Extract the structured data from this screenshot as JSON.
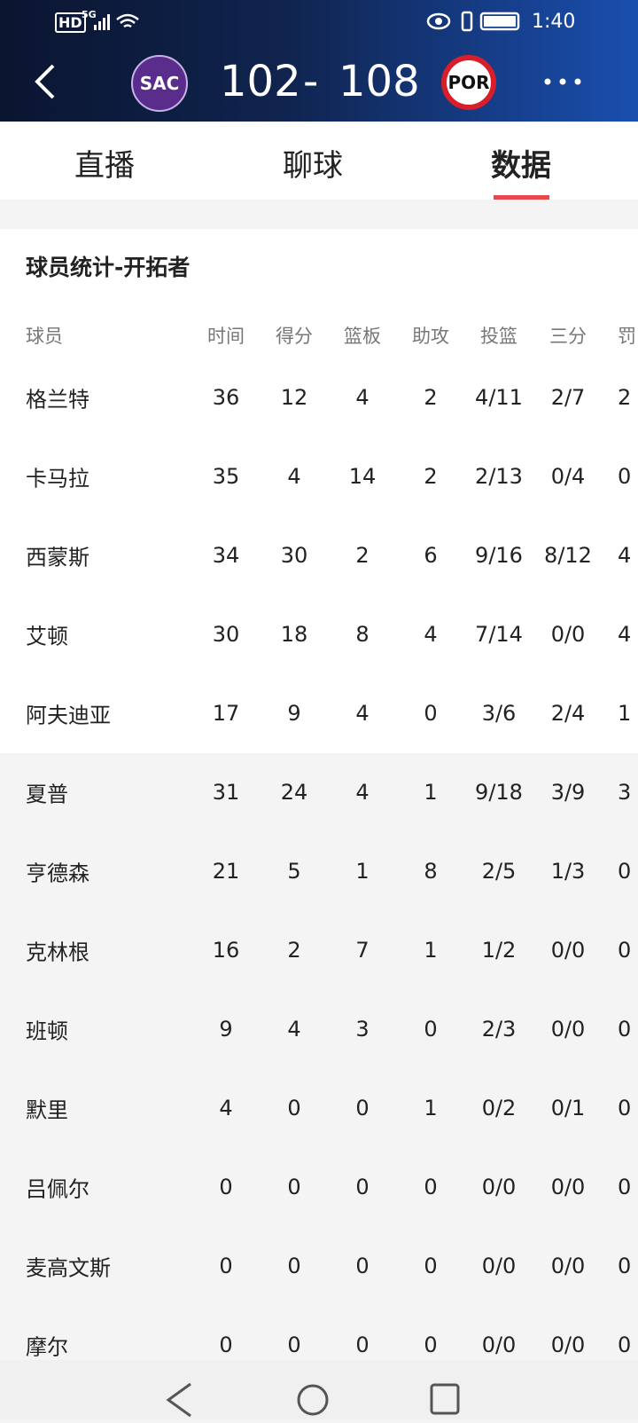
{
  "status_bar": {
    "hd": "HD",
    "network": "5G",
    "time": "1:40"
  },
  "header": {
    "home": {
      "abbr": "SAC",
      "score": "102"
    },
    "separator": "-",
    "away": {
      "abbr": "POR",
      "score": "108"
    }
  },
  "tabs": [
    "直播",
    "聊球",
    "数据"
  ],
  "active_tab": 2,
  "table": {
    "title": "球员统计-开拓者",
    "columns": [
      "球员",
      "时间",
      "得分",
      "篮板",
      "助攻",
      "投篮",
      "三分",
      "罚"
    ],
    "rows": [
      [
        "格兰特",
        "36",
        "12",
        "4",
        "2",
        "4/11",
        "2/7",
        "2"
      ],
      [
        "卡马拉",
        "35",
        "4",
        "14",
        "2",
        "2/13",
        "0/4",
        "0"
      ],
      [
        "西蒙斯",
        "34",
        "30",
        "2",
        "6",
        "9/16",
        "8/12",
        "4"
      ],
      [
        "艾顿",
        "30",
        "18",
        "8",
        "4",
        "7/14",
        "0/0",
        "4"
      ],
      [
        "阿夫迪亚",
        "17",
        "9",
        "4",
        "0",
        "3/6",
        "2/4",
        "1"
      ],
      [
        "夏普",
        "31",
        "24",
        "4",
        "1",
        "9/18",
        "3/9",
        "3"
      ],
      [
        "亨德森",
        "21",
        "5",
        "1",
        "8",
        "2/5",
        "1/3",
        "0"
      ],
      [
        "克林根",
        "16",
        "2",
        "7",
        "1",
        "1/2",
        "0/0",
        "0"
      ],
      [
        "班顿",
        "9",
        "4",
        "3",
        "0",
        "2/3",
        "0/0",
        "0"
      ],
      [
        "默里",
        "4",
        "0",
        "0",
        "1",
        "0/2",
        "0/1",
        "0"
      ],
      [
        "吕佩尔",
        "0",
        "0",
        "0",
        "0",
        "0/0",
        "0/0",
        "0"
      ],
      [
        "麦高文斯",
        "0",
        "0",
        "0",
        "0",
        "0/0",
        "0/0",
        "0"
      ],
      [
        "摩尔",
        "0",
        "0",
        "0",
        "0",
        "0/0",
        "0/0",
        "0"
      ]
    ],
    "starter_count": 5
  }
}
